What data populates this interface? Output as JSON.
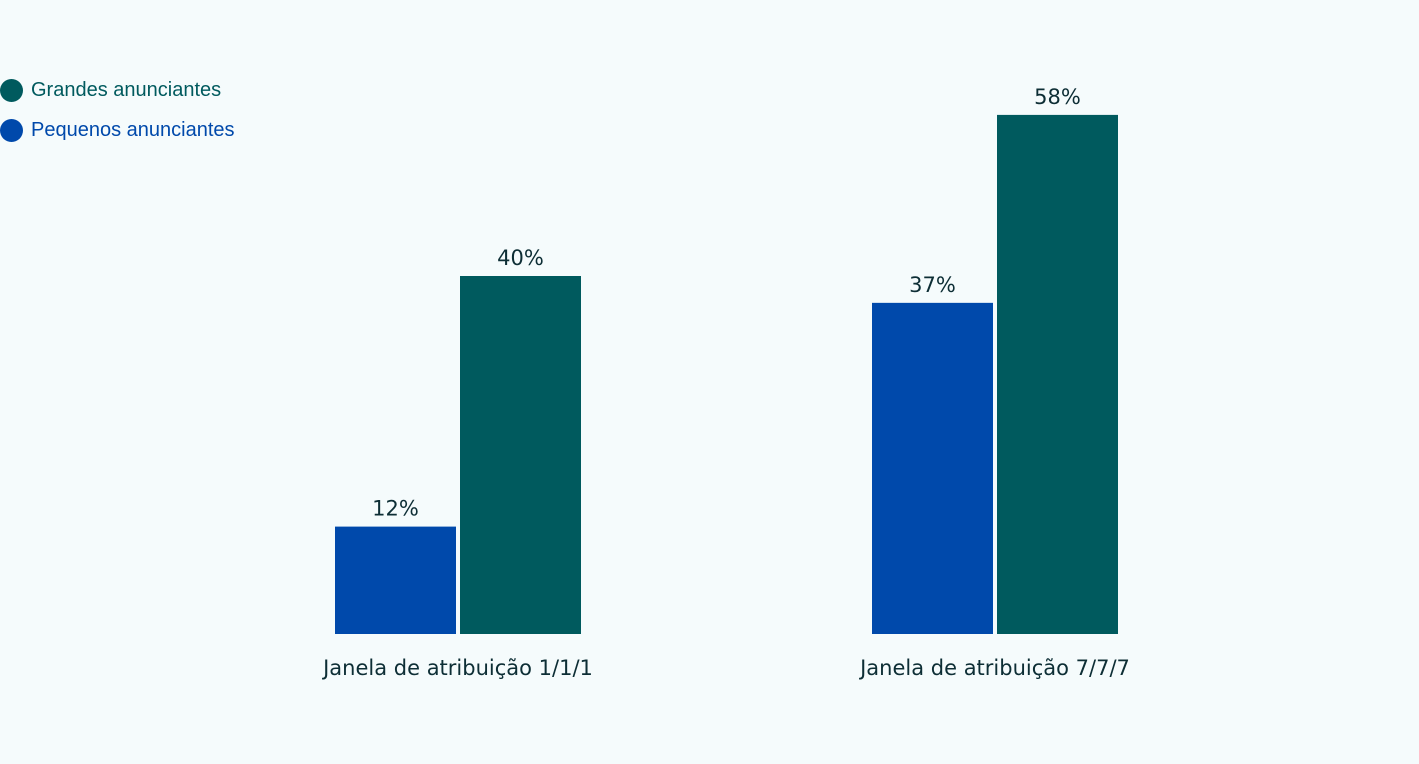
{
  "chart_data": {
    "type": "bar",
    "categories": [
      "Janela de atribuição 1/1/1",
      "Janela de atribuição 7/7/7"
    ],
    "series": [
      {
        "name": "Pequenos anunciantes",
        "values": [
          12,
          37
        ],
        "labels": [
          "12%",
          "37%"
        ],
        "color": "#0049ab"
      },
      {
        "name": "Grandes anunciantes",
        "values": [
          40,
          58
        ],
        "labels": [
          "40%",
          "58%"
        ],
        "color": "#005a5e"
      }
    ],
    "ylim": [
      0,
      100
    ],
    "grid": false,
    "legend_position": "top-left",
    "legend_order": [
      1,
      0
    ]
  },
  "colors": {
    "background": "#f5fbfc",
    "text": "#0d2e35"
  }
}
